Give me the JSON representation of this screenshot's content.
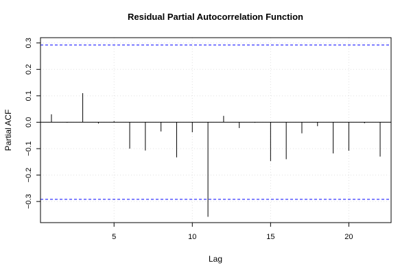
{
  "chart_data": {
    "type": "bar",
    "style": "spike",
    "title": "Residual Partial Autocorrelation Function",
    "xlabel": "Lag",
    "ylabel": "Partial ACF",
    "xlim": [
      0.3,
      22.7
    ],
    "ylim": [
      -0.38,
      0.32
    ],
    "xticks": [
      5,
      10,
      15,
      20
    ],
    "yticks": [
      -0.3,
      -0.2,
      -0.1,
      0.0,
      0.1,
      0.2,
      0.3
    ],
    "ytick_labels": [
      "−0.3",
      "−0.2",
      "−0.1",
      "0.0",
      "0.1",
      "0.2",
      "0.3"
    ],
    "grid": true,
    "x": [
      1,
      2,
      3,
      4,
      5,
      6,
      7,
      8,
      9,
      10,
      11,
      12,
      13,
      14,
      15,
      16,
      17,
      18,
      19,
      20,
      21,
      22
    ],
    "values": [
      0.03,
      -0.002,
      0.11,
      -0.005,
      0.004,
      -0.1,
      -0.107,
      -0.035,
      -0.133,
      -0.038,
      -0.358,
      0.024,
      -0.022,
      -0.002,
      -0.147,
      -0.14,
      -0.042,
      -0.015,
      -0.118,
      -0.108,
      -0.004,
      -0.13
    ],
    "confidence_bounds": [
      0.292,
      -0.292
    ],
    "colors": {
      "spike": "#000000",
      "bound": "#0000ff",
      "grid": "#e0e0e0",
      "axis": "#000000"
    }
  }
}
